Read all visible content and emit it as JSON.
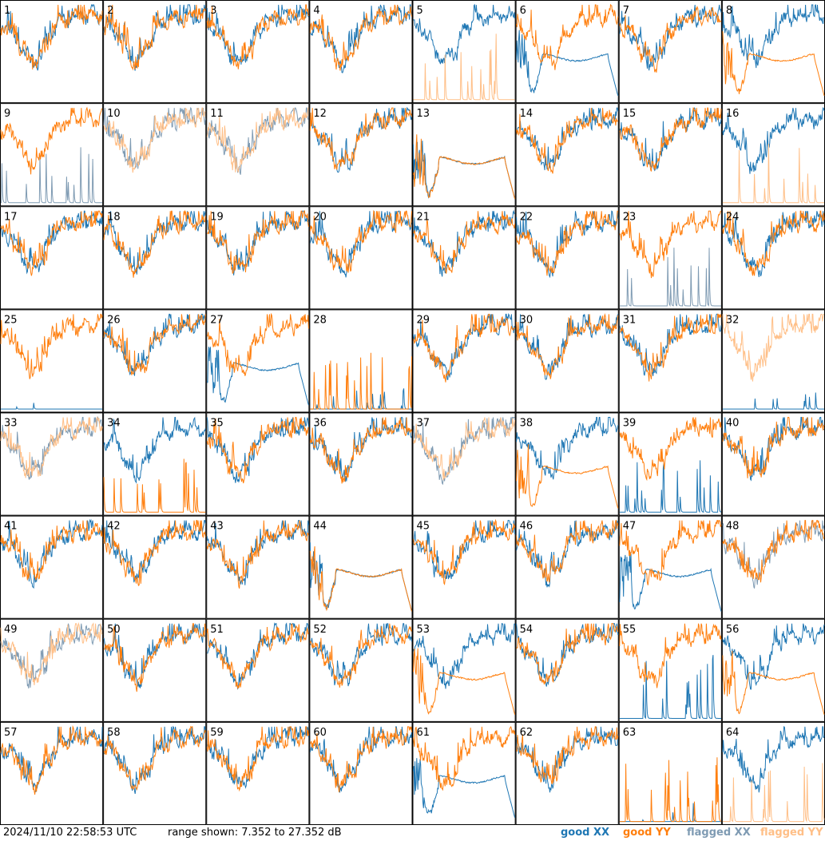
{
  "footer": {
    "timestamp": "2024/11/10 22:58:53 UTC",
    "range_text": "range shown: 7.352 to 27.352 dB",
    "legend": {
      "good_xx": "good XX",
      "good_yy": "good YY",
      "flagged_xx": "flagged XX",
      "flagged_yy": "flagged YY"
    }
  },
  "colors": {
    "good_xx": "#1f77b4",
    "good_yy": "#ff7f0e",
    "flagged_xx": "#7f9bb3",
    "flagged_yy": "#ffbf87"
  },
  "chart_data": {
    "type": "line",
    "ylim": [
      7.352,
      27.352
    ],
    "yunit": "dB",
    "panel_labels": [
      "1",
      "2",
      "3",
      "4",
      "5",
      "6",
      "7",
      "8",
      "9",
      "10",
      "11",
      "12",
      "13",
      "14",
      "15",
      "16",
      "17",
      "18",
      "19",
      "20",
      "21",
      "22",
      "23",
      "24",
      "25",
      "26",
      "27",
      "28",
      "29",
      "30",
      "31",
      "32",
      "33",
      "34",
      "35",
      "36",
      "37",
      "38",
      "39",
      "40",
      "41",
      "42",
      "43",
      "44",
      "45",
      "46",
      "47",
      "48",
      "49",
      "50",
      "51",
      "52",
      "53",
      "54",
      "55",
      "56",
      "57",
      "58",
      "59",
      "60",
      "61",
      "62",
      "63",
      "64"
    ],
    "panel_status": {
      "flagged_xx": [
        9,
        10,
        11,
        23,
        33,
        37,
        48,
        49
      ],
      "flagged_yy": [
        5,
        10,
        11,
        16,
        32,
        33,
        37,
        49,
        64
      ],
      "spiky_xx": [
        9,
        23,
        39,
        55
      ],
      "spiky_yy": [
        5,
        16,
        28,
        34,
        63,
        64
      ],
      "flat_xx": [
        25,
        32,
        28,
        63
      ],
      "flat_yy": [],
      "fault_xx": [
        6,
        13,
        27,
        44,
        61,
        47
      ],
      "fault_yy": [
        8,
        53,
        56,
        44,
        13,
        38
      ],
      "xx_only": [
        5,
        16,
        64
      ],
      "yy_only": [
        25,
        32,
        63
      ]
    }
  }
}
